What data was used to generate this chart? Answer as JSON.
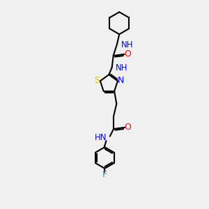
{
  "bg_color": "#f0f0f0",
  "bond_color": "#000000",
  "N_color": "#0000ff",
  "O_color": "#ff0000",
  "S_color": "#cccc00",
  "F_color": "#00aaaa",
  "line_width": 1.5,
  "figsize": [
    3.0,
    3.0
  ],
  "dpi": 100,
  "xlim": [
    0,
    10
  ],
  "ylim": [
    0,
    14
  ]
}
